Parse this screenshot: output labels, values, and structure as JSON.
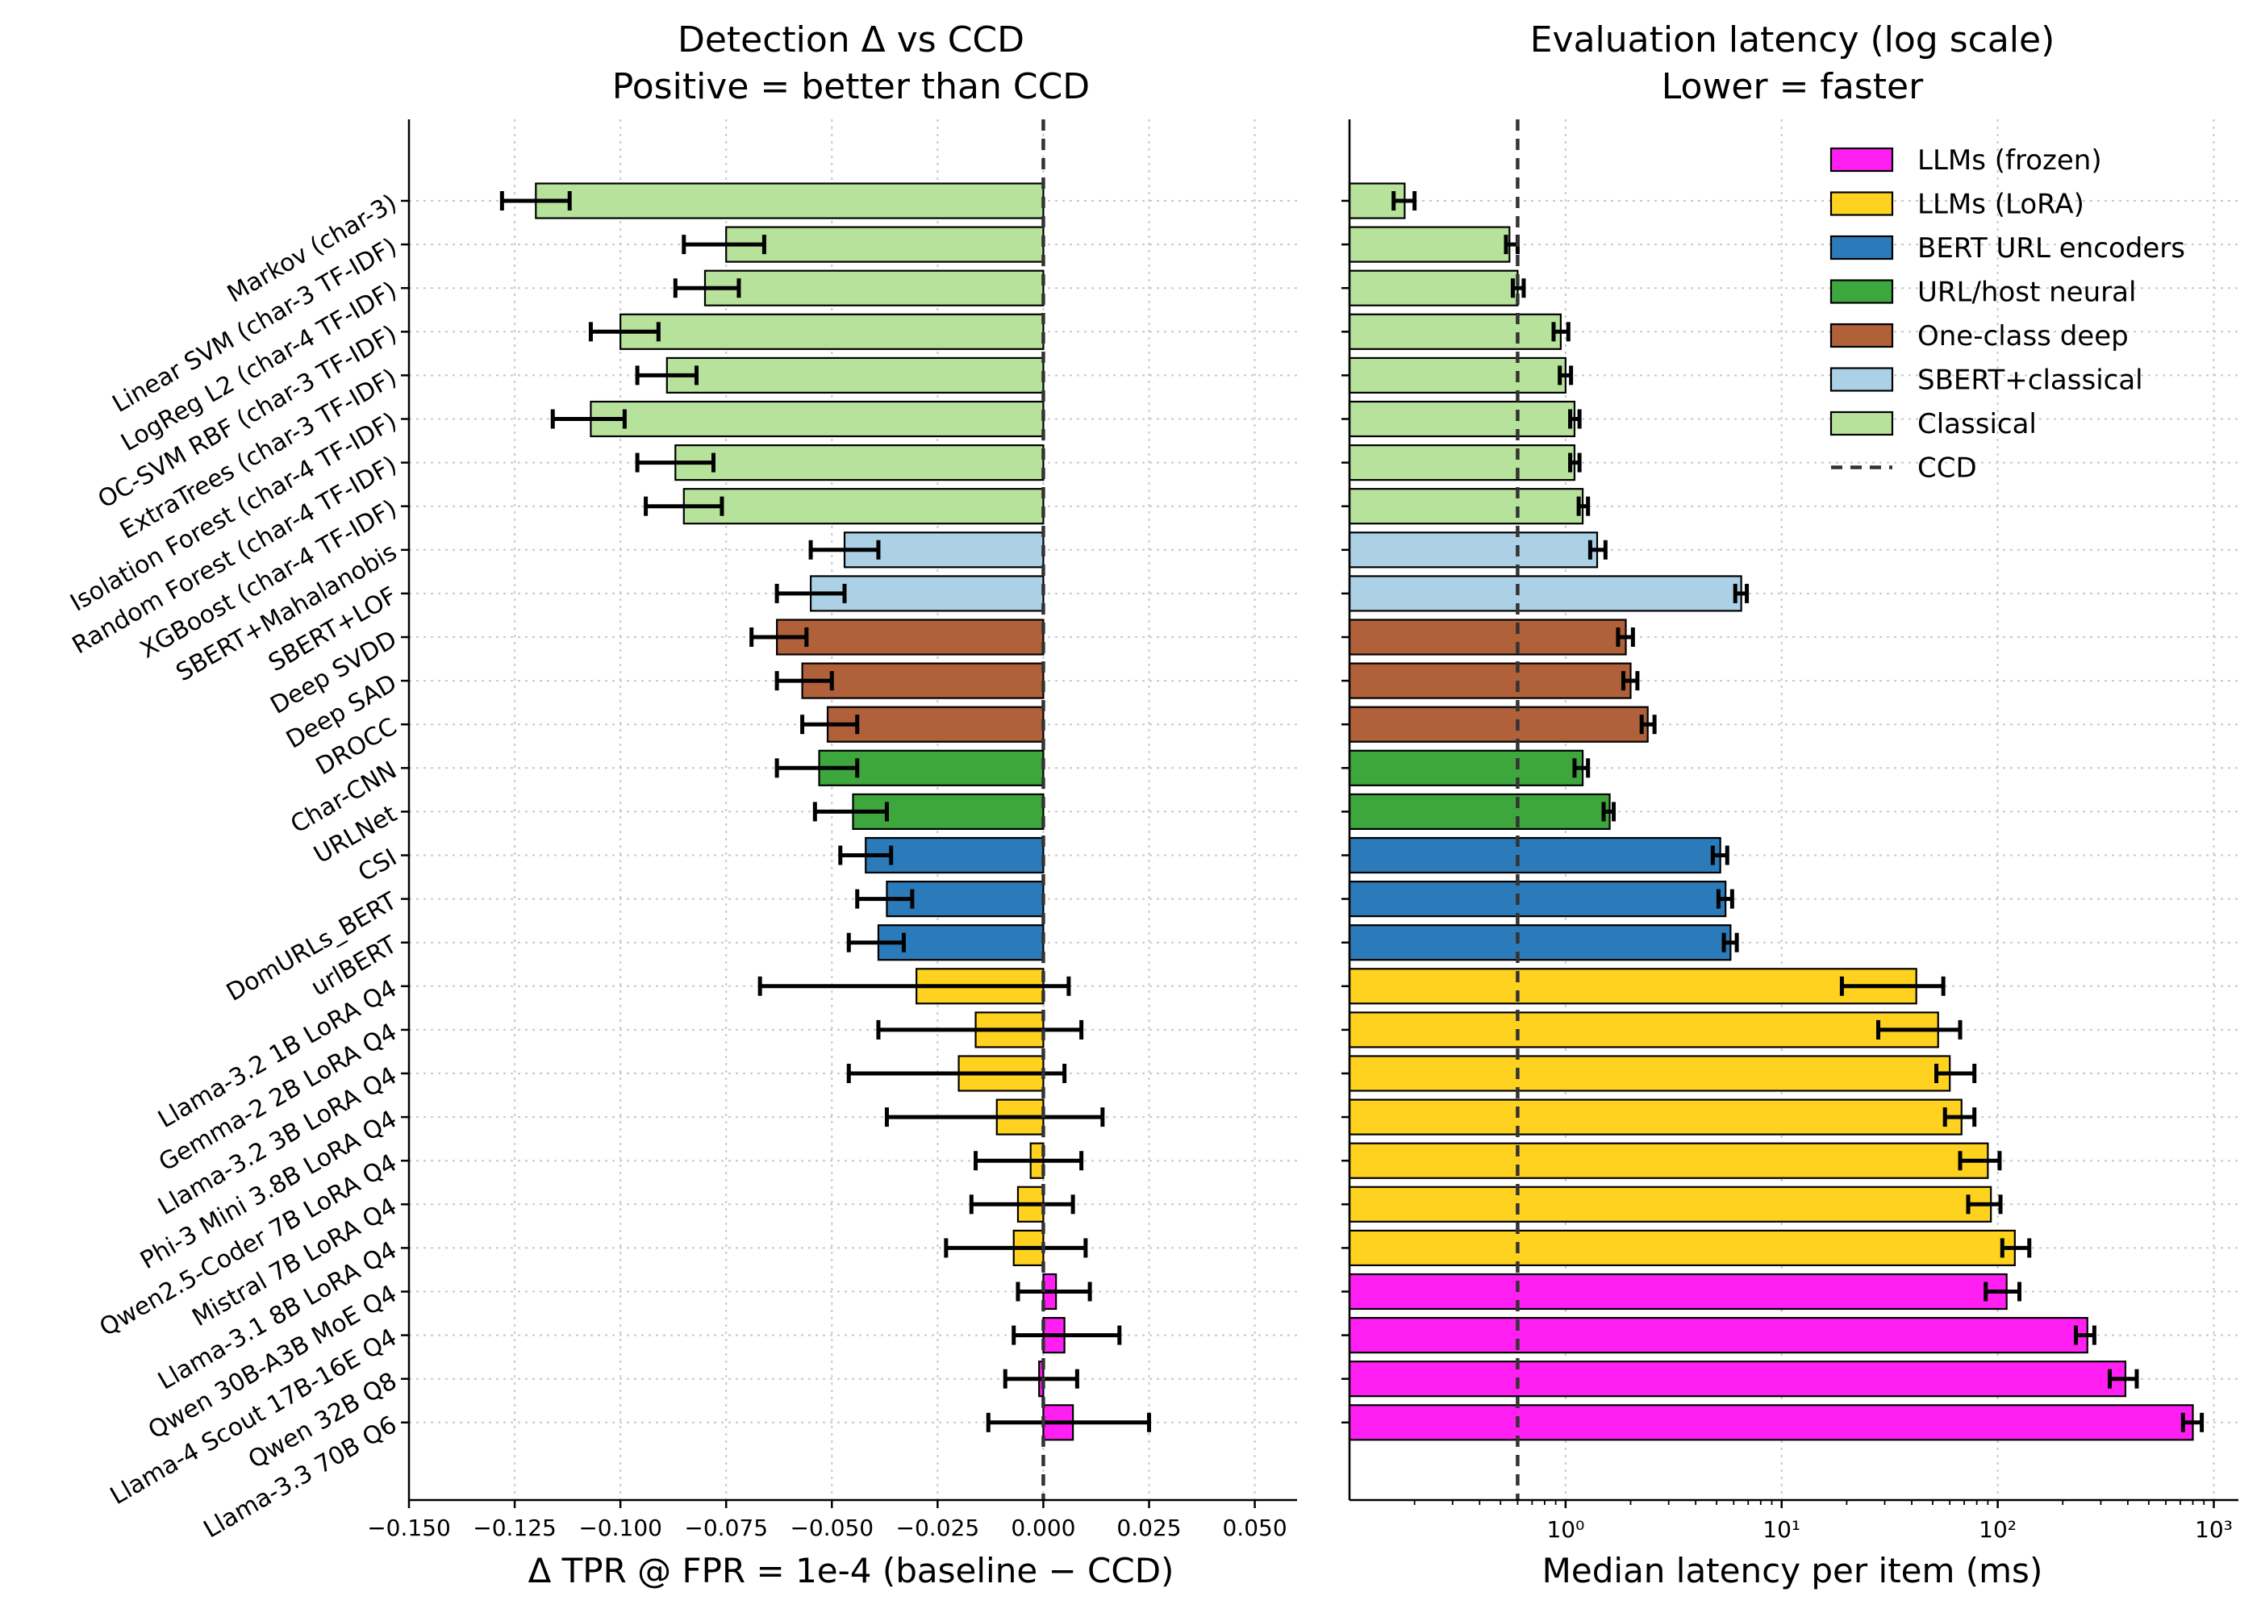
{
  "group_colors": {
    "LLMs (frozen)": "#ff1ff2",
    "LLMs (LoRA)": "#ffd21f",
    "BERT URL encoders": "#2b7bba",
    "URL/host neural": "#3da73d",
    "One-class deep": "#b0613a",
    "SBERT+classical": "#acd1e6",
    "Classical": "#b7e29b"
  },
  "legend": {
    "items": [
      "LLMs (frozen)",
      "LLMs (LoRA)",
      "BERT URL encoders",
      "URL/host neural",
      "One-class deep",
      "SBERT+classical",
      "Classical"
    ],
    "reference_label": "CCD",
    "placement": "upper-right"
  },
  "chart_data": [
    {
      "type": "bar",
      "orientation": "horizontal",
      "title": "Detection Δ vs CCD",
      "subtitle": "Positive = better than CCD",
      "xlabel": "Δ TPR @ FPR = 1e-4 (baseline − CCD)",
      "xlim": [
        -0.15,
        0.06
      ],
      "xticks": [
        "−0.150",
        "−0.125",
        "−0.100",
        "−0.075",
        "−0.050",
        "−0.025",
        "0.000",
        "0.025",
        "0.050"
      ],
      "xtick_values": [
        -0.15,
        -0.125,
        -0.1,
        -0.075,
        -0.05,
        -0.025,
        0.0,
        0.025,
        0.05
      ],
      "reference_value": 0.0,
      "grid": true,
      "categories": [
        "Markov (char-3)",
        "Linear SVM (char-3 TF-IDF)",
        "LogReg L2 (char-4 TF-IDF)",
        "OC-SVM RBF (char-3 TF-IDF)",
        "ExtraTrees (char-3 TF-IDF)",
        "Isolation Forest (char-4 TF-IDF)",
        "Random Forest (char-4 TF-IDF)",
        "XGBoost (char-4 TF-IDF)",
        "SBERT+Mahalanobis",
        "SBERT+LOF",
        "Deep SVDD",
        "Deep SAD",
        "DROCC",
        "Char-CNN",
        "URLNet",
        "CSI",
        "DomURLs_BERT",
        "urlBERT",
        "Llama-3.2 1B LoRA Q4",
        "Gemma-2 2B LoRA Q4",
        "Llama-3.2 3B LoRA Q4",
        "Phi-3 Mini 3.8B LoRA Q4",
        "Qwen2.5-Coder 7B LoRA Q4",
        "Mistral 7B LoRA Q4",
        "Llama-3.1 8B LoRA Q4",
        "Qwen 30B-A3B MoE Q4",
        "Llama-4 Scout 17B-16E Q4",
        "Qwen 32B Q8",
        "Llama-3.3 70B Q6"
      ],
      "groups": [
        "Classical",
        "Classical",
        "Classical",
        "Classical",
        "Classical",
        "Classical",
        "Classical",
        "Classical",
        "SBERT+classical",
        "SBERT+classical",
        "One-class deep",
        "One-class deep",
        "One-class deep",
        "URL/host neural",
        "URL/host neural",
        "BERT URL encoders",
        "BERT URL encoders",
        "BERT URL encoders",
        "LLMs (LoRA)",
        "LLMs (LoRA)",
        "LLMs (LoRA)",
        "LLMs (LoRA)",
        "LLMs (LoRA)",
        "LLMs (LoRA)",
        "LLMs (LoRA)",
        "LLMs (frozen)",
        "LLMs (frozen)",
        "LLMs (frozen)",
        "LLMs (frozen)"
      ],
      "values": [
        -0.12,
        -0.075,
        -0.08,
        -0.1,
        -0.089,
        -0.107,
        -0.087,
        -0.085,
        -0.047,
        -0.055,
        -0.063,
        -0.057,
        -0.051,
        -0.053,
        -0.045,
        -0.042,
        -0.037,
        -0.039,
        -0.03,
        -0.016,
        -0.02,
        -0.011,
        -0.003,
        -0.006,
        -0.007,
        0.003,
        0.005,
        -0.001,
        0.007
      ],
      "err_low": [
        -0.128,
        -0.085,
        -0.087,
        -0.107,
        -0.096,
        -0.116,
        -0.096,
        -0.094,
        -0.055,
        -0.063,
        -0.069,
        -0.063,
        -0.057,
        -0.063,
        -0.054,
        -0.048,
        -0.044,
        -0.046,
        -0.067,
        -0.039,
        -0.046,
        -0.037,
        -0.016,
        -0.017,
        -0.023,
        -0.006,
        -0.007,
        -0.009,
        -0.013
      ],
      "err_high": [
        -0.112,
        -0.066,
        -0.072,
        -0.091,
        -0.082,
        -0.099,
        -0.078,
        -0.076,
        -0.039,
        -0.047,
        -0.056,
        -0.05,
        -0.044,
        -0.044,
        -0.037,
        -0.036,
        -0.031,
        -0.033,
        0.006,
        0.009,
        0.005,
        0.014,
        0.009,
        0.007,
        0.01,
        0.011,
        0.018,
        0.008,
        0.025
      ]
    },
    {
      "type": "bar",
      "orientation": "horizontal",
      "title": "Evaluation latency (log scale)",
      "subtitle": "Lower = faster",
      "xlabel": "Median latency per item (ms)",
      "xscale": "log",
      "xlim": [
        0.1,
        1300
      ],
      "xticks": [
        "10⁰",
        "10¹",
        "10²",
        "10³"
      ],
      "xtick_values": [
        1,
        10,
        100,
        1000
      ],
      "reference_value": 0.6,
      "grid": true,
      "categories_shared_with_left": true,
      "values": [
        0.18,
        0.55,
        0.6,
        0.95,
        1.0,
        1.1,
        1.1,
        1.2,
        1.4,
        6.5,
        1.9,
        2.0,
        2.4,
        1.2,
        1.6,
        5.2,
        5.5,
        5.8,
        42,
        53,
        60,
        68,
        90,
        93,
        120,
        110,
        260,
        390,
        800
      ],
      "err_low": [
        0.16,
        0.53,
        0.57,
        0.88,
        0.94,
        1.05,
        1.05,
        1.15,
        1.3,
        6.1,
        1.75,
        1.85,
        2.25,
        1.1,
        1.5,
        4.8,
        5.1,
        5.4,
        19,
        28,
        52,
        57,
        67,
        73,
        105,
        88,
        230,
        330,
        720
      ],
      "err_high": [
        0.2,
        0.6,
        0.64,
        1.03,
        1.06,
        1.16,
        1.16,
        1.27,
        1.53,
        6.9,
        2.05,
        2.15,
        2.58,
        1.27,
        1.67,
        5.6,
        5.9,
        6.2,
        56,
        67,
        78,
        78,
        102,
        103,
        140,
        126,
        280,
        440,
        880
      ]
    }
  ]
}
